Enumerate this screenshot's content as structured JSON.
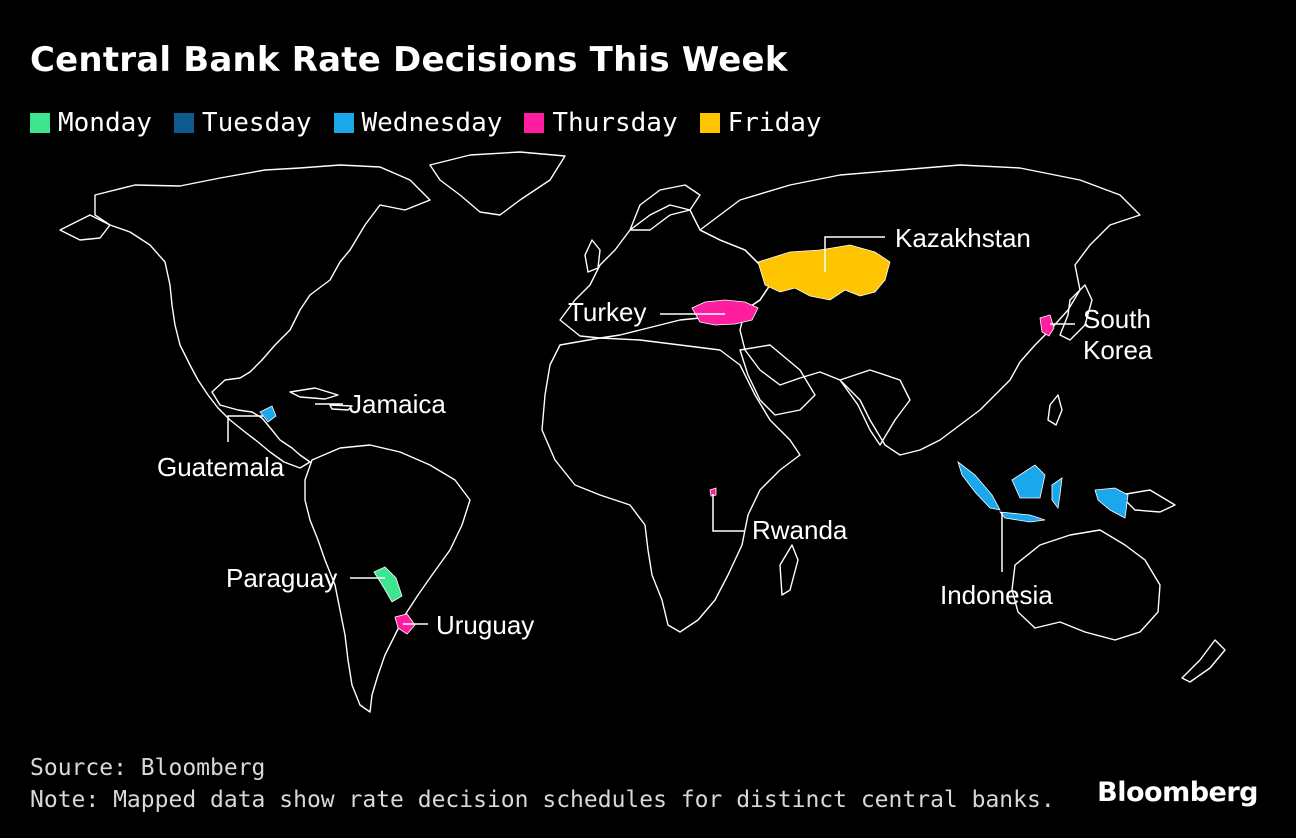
{
  "title": "Central Bank Rate Decisions This Week",
  "legend": [
    {
      "label": "Monday",
      "color": "#3ee58f"
    },
    {
      "label": "Tuesday",
      "color": "#0e5a8c"
    },
    {
      "label": "Wednesday",
      "color": "#1aa7ec"
    },
    {
      "label": "Thursday",
      "color": "#ff1ea0"
    },
    {
      "label": "Friday",
      "color": "#ffc400"
    }
  ],
  "countries": [
    {
      "name": "Kazakhstan",
      "day": "Friday"
    },
    {
      "name": "Turkey",
      "day": "Thursday"
    },
    {
      "name": "South Korea",
      "label_lines": [
        "South",
        "Korea"
      ],
      "day": "Thursday"
    },
    {
      "name": "Jamaica",
      "day": "Tuesday"
    },
    {
      "name": "Guatemala",
      "day": "Wednesday"
    },
    {
      "name": "Rwanda",
      "day": "Thursday"
    },
    {
      "name": "Indonesia",
      "day": "Wednesday"
    },
    {
      "name": "Paraguay",
      "day": "Monday"
    },
    {
      "name": "Uruguay",
      "day": "Thursday"
    }
  ],
  "footer": {
    "source": "Source: Bloomberg",
    "note": "Note: Mapped data show rate decision schedules for distinct central banks."
  },
  "brand": "Bloomberg"
}
